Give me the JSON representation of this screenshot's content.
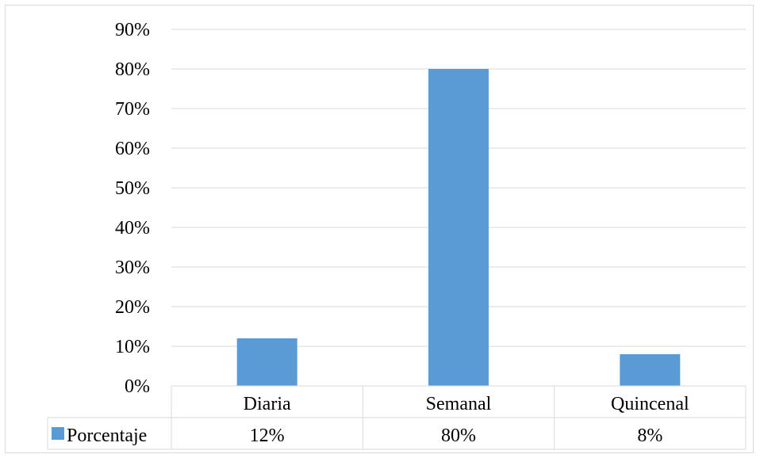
{
  "chart_data": {
    "type": "bar",
    "categories": [
      "Diaria",
      "Semanal",
      "Quincenal"
    ],
    "series": [
      {
        "name": "Porcentaje",
        "values": [
          12,
          80,
          8
        ],
        "labels": [
          "12%",
          "80%",
          "8%"
        ],
        "color": "#5b9bd5"
      }
    ],
    "yticks": [
      "0%",
      "10%",
      "20%",
      "30%",
      "40%",
      "50%",
      "60%",
      "70%",
      "80%",
      "90%"
    ],
    "ylim": [
      0,
      90
    ],
    "grid": true,
    "legend": "data-table"
  }
}
